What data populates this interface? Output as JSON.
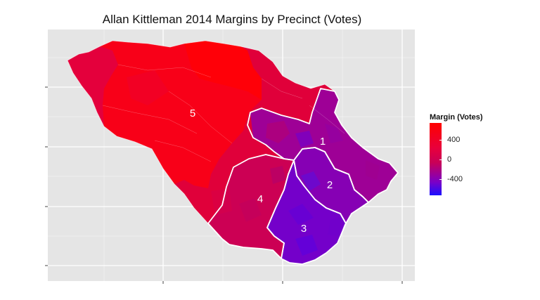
{
  "title": "Allan Kittleman 2014 Margins by Precinct (Votes)",
  "legend": {
    "title": "Margin (Votes)",
    "labels": [
      "400",
      "0",
      "-400"
    ],
    "colors": {
      "high": "#ff0000",
      "mid": "#c80058",
      "low": "#1a10ff"
    }
  },
  "districts": [
    {
      "number": "5",
      "color": "#f80018"
    },
    {
      "number": "1",
      "color": "#9a0098"
    },
    {
      "number": "2",
      "color": "#8a00b0"
    },
    {
      "number": "3",
      "color": "#7a00c8"
    },
    {
      "number": "4",
      "color": "#d00050"
    }
  ],
  "colors": {
    "panel": "#e5e5e5",
    "grid": "#ffffff",
    "border": "#ffffff"
  }
}
